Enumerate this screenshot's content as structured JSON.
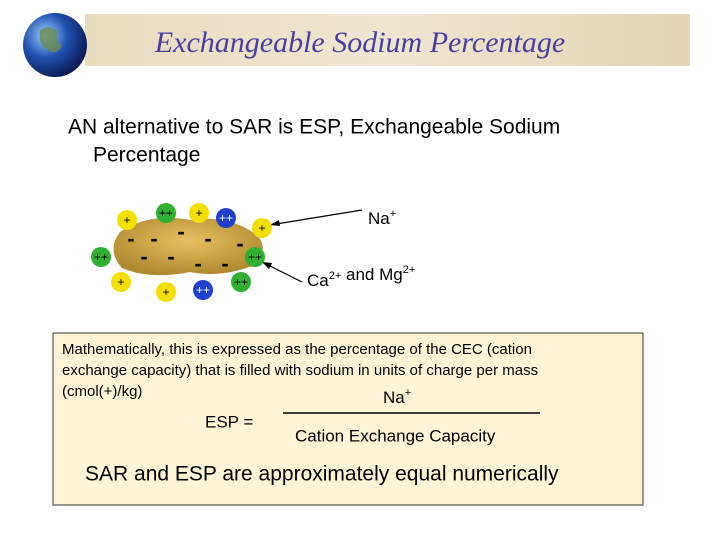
{
  "header": {
    "title": "Exchangeable Sodium Percentage"
  },
  "bullet": {
    "lines": [
      "AN alternative to SAR is ESP, Exchangeable Sodium",
      "Percentage"
    ]
  },
  "diagram": {
    "ions": [
      {
        "label": "+",
        "color": "#f2e000"
      },
      {
        "label": "++",
        "color": "#30b030"
      },
      {
        "label": "+",
        "color": "#f2e000"
      },
      {
        "label": "++",
        "color": "#2040d0"
      },
      {
        "label": "+",
        "color": "#f2e000"
      },
      {
        "label": "++",
        "color": "#30b030"
      },
      {
        "label": "++",
        "color": "#30b030"
      },
      {
        "label": "+",
        "color": "#f2e000"
      },
      {
        "label": "+",
        "color": "#f2e000"
      },
      {
        "label": "++",
        "color": "#2040d0"
      },
      {
        "label": "++",
        "color": "#30b030"
      }
    ],
    "charges": [
      "-",
      "-",
      "-",
      "-",
      "-",
      "-",
      "-",
      "-",
      "-"
    ],
    "na_label": {
      "base": "Na",
      "sup": "+"
    },
    "ca_mg_label": {
      "parts": [
        {
          "base": "Ca",
          "sup": "2+"
        },
        {
          "base": " and Mg",
          "sup": "2+"
        }
      ]
    }
  },
  "box": {
    "lines": [
      "Mathematically, this is expressed as the percentage of the CEC (cation",
      "exchange capacity) that is filled with sodium in units of charge per mass",
      "(cmol(+)/kg)"
    ],
    "formula": {
      "lhs": "ESP =",
      "numerator": {
        "base": "Na",
        "sup": "+"
      },
      "denominator": "Cation Exchange Capacity"
    }
  },
  "conclusion": "SAR and ESP are approximately equal numerically"
}
